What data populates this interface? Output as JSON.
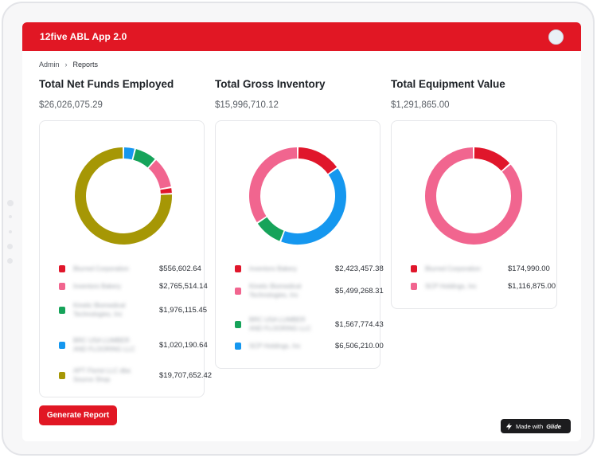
{
  "app": {
    "title": "12five ABL App 2.0"
  },
  "breadcrumb": {
    "root": "Admin",
    "current": "Reports"
  },
  "reports": [
    {
      "title": "Total Net Funds Employed",
      "value": "$26,026,075.29",
      "items": [
        {
          "name": "Blurred Corporation",
          "amount": "$556,602.64",
          "color": "#e0162b"
        },
        {
          "name": "Inventors Bakery",
          "amount": "$2,765,514.14",
          "color": "#f1658f"
        },
        {
          "name": "Kinetic Biomedical Technologies, Inc",
          "amount": "$1,976,115.45",
          "color": "#16a35a"
        },
        {
          "name": "BRC USA LUMBER AND FLOORING LLC",
          "amount": "$1,020,190.64",
          "color": "#1597ef"
        },
        {
          "name": "APT Florist LLC dba Source Shop",
          "amount": "$19,707,652.42",
          "color": "#a69705"
        }
      ],
      "chart_data": {
        "type": "pie",
        "categories": [
          "Blurred Corporation",
          "Inventors Bakery",
          "Kinetic Biomedical Technologies, Inc",
          "BRC USA LUMBER AND FLOORING LLC",
          "APT Florist LLC dba Source Shop"
        ],
        "values": [
          556602.64,
          2765514.14,
          1976115.45,
          1020190.64,
          19707652.42
        ],
        "slice_order": [
          3,
          2,
          1,
          0,
          4
        ]
      }
    },
    {
      "title": "Total Gross Inventory",
      "value": "$15,996,710.12",
      "items": [
        {
          "name": "Inventors Bakery",
          "amount": "$2,423,457.38",
          "color": "#e0162b"
        },
        {
          "name": "Kinetic Biomedical Technologies, Inc",
          "amount": "$5,499,268.31",
          "color": "#f1658f"
        },
        {
          "name": "BRC USA LUMBER AND FLOORING LLC",
          "amount": "$1,567,774.43",
          "color": "#16a35a"
        },
        {
          "name": "SCP Holdings, Inc",
          "amount": "$6,506,210.00",
          "color": "#1597ef"
        }
      ],
      "chart_data": {
        "type": "pie",
        "categories": [
          "Inventors Bakery",
          "Kinetic Biomedical Technologies, Inc",
          "BRC USA LUMBER AND FLOORING LLC",
          "SCP Holdings, Inc"
        ],
        "values": [
          2423457.38,
          5499268.31,
          1567774.43,
          6506210.0
        ],
        "slice_order": [
          0,
          3,
          2,
          1
        ]
      }
    },
    {
      "title": "Total Equipment Value",
      "value": "$1,291,865.00",
      "items": [
        {
          "name": "Blurred Corporation",
          "amount": "$174,990.00",
          "color": "#e0162b"
        },
        {
          "name": "SCP Holdings, Inc",
          "amount": "$1,116,875.00",
          "color": "#f1658f"
        }
      ],
      "chart_data": {
        "type": "pie",
        "categories": [
          "Blurred Corporation",
          "SCP Holdings, Inc"
        ],
        "values": [
          174990.0,
          1116875.0
        ],
        "slice_order": [
          0,
          1
        ]
      }
    }
  ],
  "actions": {
    "generate_report": "Generate Report"
  },
  "badge": {
    "prefix": "Made with",
    "brand": "Glide"
  }
}
